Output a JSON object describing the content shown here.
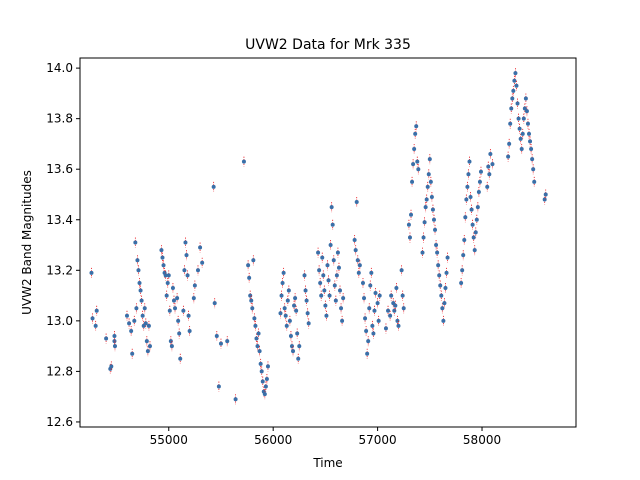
{
  "chart_data": {
    "type": "scatter",
    "title": "UVW2 Data for Mrk 335",
    "xlabel": "Time",
    "ylabel": "UVW2 Band Magnitudes",
    "xlim": [
      54150,
      58900
    ],
    "ylim": [
      12.58,
      14.04
    ],
    "xticks": [
      55000,
      56000,
      57000,
      58000
    ],
    "yticks": [
      12.6,
      12.8,
      13.0,
      13.2,
      13.4,
      13.6,
      13.8,
      14.0
    ],
    "grid": false,
    "legend": "none",
    "colors": {
      "points": "#3a6fa8",
      "errorbars": "#e8141b"
    },
    "points": [
      [
        54260,
        13.19
      ],
      [
        54270,
        13.01
      ],
      [
        54300,
        12.98
      ],
      [
        54310,
        13.04
      ],
      [
        54400,
        12.93
      ],
      [
        54440,
        12.81
      ],
      [
        54450,
        12.82
      ],
      [
        54480,
        12.92
      ],
      [
        54480,
        12.94
      ],
      [
        54485,
        12.9
      ],
      [
        54600,
        13.02
      ],
      [
        54620,
        12.99
      ],
      [
        54640,
        12.96
      ],
      [
        54650,
        12.87
      ],
      [
        54670,
        13.0
      ],
      [
        54680,
        13.31
      ],
      [
        54690,
        13.05
      ],
      [
        54700,
        13.24
      ],
      [
        54710,
        13.2
      ],
      [
        54720,
        13.15
      ],
      [
        54730,
        13.12
      ],
      [
        54740,
        13.08
      ],
      [
        54750,
        13.02
      ],
      [
        54760,
        12.98
      ],
      [
        54770,
        13.05
      ],
      [
        54780,
        12.99
      ],
      [
        54790,
        12.92
      ],
      [
        54800,
        12.88
      ],
      [
        54810,
        12.98
      ],
      [
        54820,
        12.9
      ],
      [
        54930,
        13.28
      ],
      [
        54940,
        13.25
      ],
      [
        54950,
        13.22
      ],
      [
        54960,
        13.19
      ],
      [
        54970,
        13.18
      ],
      [
        54980,
        13.1
      ],
      [
        54990,
        13.15
      ],
      [
        55000,
        13.18
      ],
      [
        55010,
        13.04
      ],
      [
        55020,
        12.92
      ],
      [
        55030,
        12.9
      ],
      [
        55040,
        13.13
      ],
      [
        55050,
        13.08
      ],
      [
        55060,
        13.05
      ],
      [
        55080,
        13.09
      ],
      [
        55090,
        13.0
      ],
      [
        55100,
        12.95
      ],
      [
        55110,
        12.85
      ],
      [
        55140,
        13.04
      ],
      [
        55150,
        13.2
      ],
      [
        55160,
        13.31
      ],
      [
        55170,
        13.26
      ],
      [
        55180,
        13.18
      ],
      [
        55190,
        13.02
      ],
      [
        55200,
        12.96
      ],
      [
        55240,
        13.09
      ],
      [
        55250,
        13.14
      ],
      [
        55280,
        13.2
      ],
      [
        55300,
        13.29
      ],
      [
        55320,
        13.23
      ],
      [
        55430,
        13.53
      ],
      [
        55440,
        13.07
      ],
      [
        55460,
        12.94
      ],
      [
        55480,
        12.74
      ],
      [
        55500,
        12.91
      ],
      [
        55560,
        12.92
      ],
      [
        55640,
        12.69
      ],
      [
        55720,
        13.63
      ],
      [
        55760,
        13.22
      ],
      [
        55770,
        13.17
      ],
      [
        55780,
        13.1
      ],
      [
        55790,
        13.08
      ],
      [
        55800,
        13.05
      ],
      [
        55810,
        13.24
      ],
      [
        55820,
        13.01
      ],
      [
        55830,
        12.98
      ],
      [
        55840,
        12.93
      ],
      [
        55850,
        12.9
      ],
      [
        55860,
        12.95
      ],
      [
        55870,
        12.88
      ],
      [
        55880,
        12.83
      ],
      [
        55890,
        12.8
      ],
      [
        55900,
        12.76
      ],
      [
        55910,
        12.72
      ],
      [
        55920,
        12.71
      ],
      [
        55930,
        12.74
      ],
      [
        55940,
        12.77
      ],
      [
        55950,
        12.82
      ],
      [
        56070,
        13.03
      ],
      [
        56080,
        13.1
      ],
      [
        56090,
        13.15
      ],
      [
        56100,
        13.19
      ],
      [
        56110,
        13.05
      ],
      [
        56120,
        13.02
      ],
      [
        56130,
        12.98
      ],
      [
        56140,
        13.08
      ],
      [
        56150,
        13.12
      ],
      [
        56160,
        13.0
      ],
      [
        56170,
        12.94
      ],
      [
        56180,
        12.9
      ],
      [
        56190,
        12.88
      ],
      [
        56200,
        13.06
      ],
      [
        56210,
        13.09
      ],
      [
        56220,
        13.04
      ],
      [
        56230,
        12.95
      ],
      [
        56240,
        12.85
      ],
      [
        56250,
        12.9
      ],
      [
        56300,
        13.18
      ],
      [
        56310,
        13.12
      ],
      [
        56320,
        13.08
      ],
      [
        56330,
        13.03
      ],
      [
        56340,
        12.99
      ],
      [
        56430,
        13.27
      ],
      [
        56440,
        13.2
      ],
      [
        56450,
        13.15
      ],
      [
        56460,
        13.1
      ],
      [
        56470,
        13.25
      ],
      [
        56480,
        13.18
      ],
      [
        56490,
        13.12
      ],
      [
        56500,
        13.06
      ],
      [
        56510,
        13.02
      ],
      [
        56520,
        13.22
      ],
      [
        56530,
        13.16
      ],
      [
        56540,
        13.1
      ],
      [
        56550,
        13.3
      ],
      [
        56560,
        13.45
      ],
      [
        56570,
        13.38
      ],
      [
        56580,
        13.24
      ],
      [
        56590,
        13.14
      ],
      [
        56600,
        13.08
      ],
      [
        56610,
        13.18
      ],
      [
        56620,
        13.27
      ],
      [
        56630,
        13.21
      ],
      [
        56640,
        13.12
      ],
      [
        56650,
        13.05
      ],
      [
        56660,
        13.0
      ],
      [
        56670,
        13.09
      ],
      [
        56780,
        13.32
      ],
      [
        56790,
        13.28
      ],
      [
        56800,
        13.47
      ],
      [
        56810,
        13.24
      ],
      [
        56820,
        13.19
      ],
      [
        56830,
        13.22
      ],
      [
        56860,
        13.15
      ],
      [
        56870,
        13.09
      ],
      [
        56880,
        13.01
      ],
      [
        56890,
        12.96
      ],
      [
        56900,
        12.87
      ],
      [
        56910,
        12.92
      ],
      [
        56920,
        13.05
      ],
      [
        56930,
        13.14
      ],
      [
        56940,
        13.19
      ],
      [
        56950,
        12.98
      ],
      [
        56960,
        12.95
      ],
      [
        56970,
        13.04
      ],
      [
        56980,
        13.11
      ],
      [
        57000,
        13.07
      ],
      [
        57010,
        13.0
      ],
      [
        57020,
        13.1
      ],
      [
        57080,
        12.97
      ],
      [
        57100,
        13.04
      ],
      [
        57120,
        13.02
      ],
      [
        57130,
        13.1
      ],
      [
        57150,
        13.07
      ],
      [
        57160,
        13.04
      ],
      [
        57170,
        13.06
      ],
      [
        57180,
        13.13
      ],
      [
        57190,
        13.0
      ],
      [
        57200,
        12.98
      ],
      [
        57230,
        13.2
      ],
      [
        57240,
        13.1
      ],
      [
        57250,
        13.05
      ],
      [
        57300,
        13.38
      ],
      [
        57310,
        13.33
      ],
      [
        57320,
        13.42
      ],
      [
        57330,
        13.55
      ],
      [
        57340,
        13.62
      ],
      [
        57350,
        13.68
      ],
      [
        57360,
        13.74
      ],
      [
        57370,
        13.77
      ],
      [
        57380,
        13.63
      ],
      [
        57390,
        13.6
      ],
      [
        57430,
        13.27
      ],
      [
        57440,
        13.33
      ],
      [
        57450,
        13.39
      ],
      [
        57460,
        13.45
      ],
      [
        57470,
        13.48
      ],
      [
        57480,
        13.53
      ],
      [
        57490,
        13.58
      ],
      [
        57500,
        13.64
      ],
      [
        57510,
        13.55
      ],
      [
        57520,
        13.49
      ],
      [
        57530,
        13.44
      ],
      [
        57540,
        13.4
      ],
      [
        57550,
        13.36
      ],
      [
        57560,
        13.3
      ],
      [
        57570,
        13.27
      ],
      [
        57580,
        13.22
      ],
      [
        57590,
        13.18
      ],
      [
        57600,
        13.14
      ],
      [
        57610,
        13.1
      ],
      [
        57620,
        13.05
      ],
      [
        57630,
        13.0
      ],
      [
        57640,
        13.07
      ],
      [
        57650,
        13.13
      ],
      [
        57660,
        13.19
      ],
      [
        57670,
        13.25
      ],
      [
        57800,
        13.15
      ],
      [
        57810,
        13.2
      ],
      [
        57820,
        13.26
      ],
      [
        57830,
        13.32
      ],
      [
        57840,
        13.41
      ],
      [
        57850,
        13.48
      ],
      [
        57860,
        13.53
      ],
      [
        57870,
        13.58
      ],
      [
        57880,
        13.63
      ],
      [
        57890,
        13.49
      ],
      [
        57900,
        13.44
      ],
      [
        57910,
        13.38
      ],
      [
        57920,
        13.33
      ],
      [
        57930,
        13.28
      ],
      [
        57940,
        13.35
      ],
      [
        57950,
        13.4
      ],
      [
        57960,
        13.45
      ],
      [
        57970,
        13.51
      ],
      [
        57980,
        13.55
      ],
      [
        57990,
        13.59
      ],
      [
        58050,
        13.53
      ],
      [
        58060,
        13.61
      ],
      [
        58070,
        13.58
      ],
      [
        58080,
        13.66
      ],
      [
        58100,
        13.62
      ],
      [
        58250,
        13.65
      ],
      [
        58260,
        13.7
      ],
      [
        58270,
        13.78
      ],
      [
        58280,
        13.84
      ],
      [
        58290,
        13.88
      ],
      [
        58300,
        13.91
      ],
      [
        58310,
        13.95
      ],
      [
        58320,
        13.98
      ],
      [
        58330,
        13.93
      ],
      [
        58340,
        13.86
      ],
      [
        58350,
        13.8
      ],
      [
        58360,
        13.76
      ],
      [
        58370,
        13.72
      ],
      [
        58380,
        13.68
      ],
      [
        58390,
        13.74
      ],
      [
        58400,
        13.8
      ],
      [
        58410,
        13.84
      ],
      [
        58420,
        13.88
      ],
      [
        58430,
        13.83
      ],
      [
        58440,
        13.78
      ],
      [
        58450,
        13.74
      ],
      [
        58460,
        13.71
      ],
      [
        58470,
        13.68
      ],
      [
        58480,
        13.64
      ],
      [
        58490,
        13.6
      ],
      [
        58500,
        13.55
      ],
      [
        58600,
        13.48
      ],
      [
        58610,
        13.5
      ]
    ]
  }
}
